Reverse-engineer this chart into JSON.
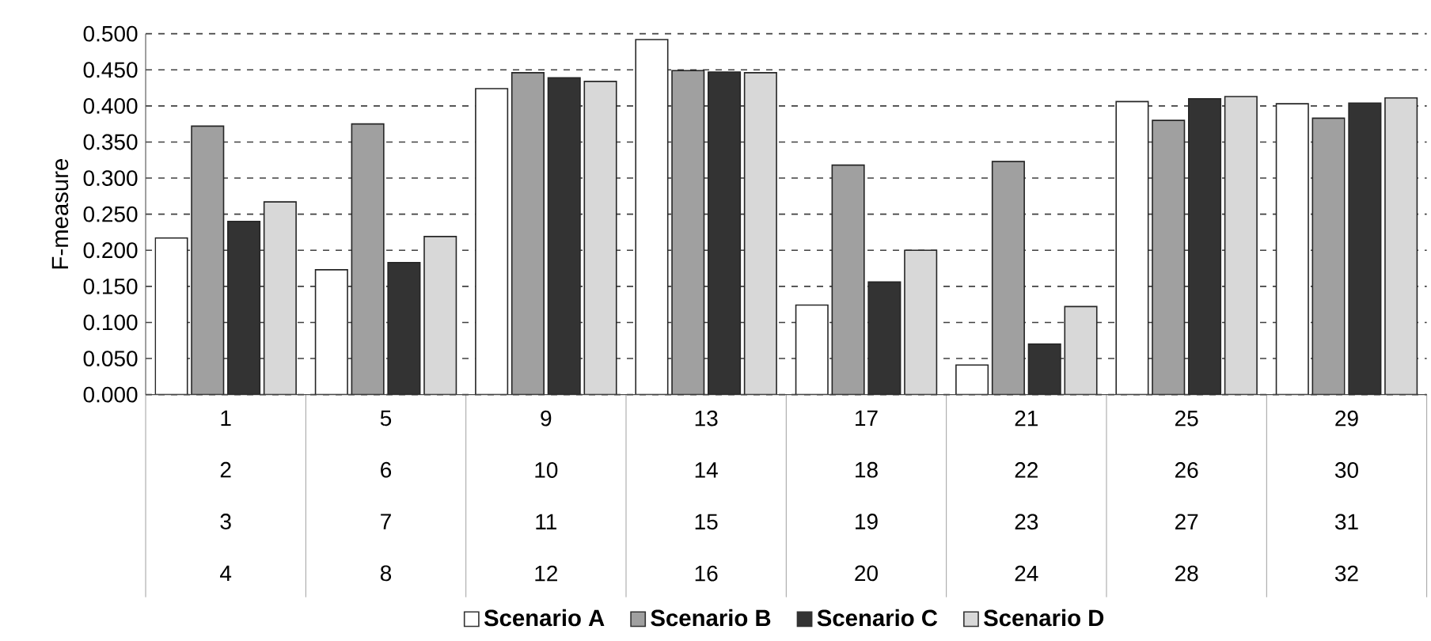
{
  "chart_data": {
    "type": "bar",
    "ylabel": "F-measure",
    "categories": [
      "1 2 3 4",
      "5 6 7 8",
      "9 10 11 12",
      "13 14 15 16",
      "17 18 19 20",
      "21 22 23 24",
      "25 26 27 28",
      "29 30 31 32"
    ],
    "series": [
      {
        "name": "Scenario A",
        "color": "#ffffff",
        "values": [
          0.217,
          0.173,
          0.424,
          0.492,
          0.124,
          0.041,
          0.406,
          0.403
        ]
      },
      {
        "name": "Scenario B",
        "color": "#a0a0a0",
        "values": [
          0.372,
          0.375,
          0.446,
          0.449,
          0.318,
          0.323,
          0.38,
          0.383
        ]
      },
      {
        "name": "Scenario C",
        "color": "#333333",
        "values": [
          0.24,
          0.183,
          0.439,
          0.447,
          0.156,
          0.07,
          0.41,
          0.404
        ]
      },
      {
        "name": "Scenario D",
        "color": "#d8d8d8",
        "values": [
          0.267,
          0.219,
          0.434,
          0.446,
          0.2,
          0.122,
          0.413,
          0.411
        ]
      }
    ],
    "ylim": [
      0,
      0.5
    ],
    "yticks": [
      {
        "value": 0,
        "label": "0.000"
      },
      {
        "value": 0.05,
        "label": "0.050"
      },
      {
        "value": 0.1,
        "label": "0.100"
      },
      {
        "value": 0.15,
        "label": "0.150"
      },
      {
        "value": 0.2,
        "label": "0.200"
      },
      {
        "value": 0.25,
        "label": "0.250"
      },
      {
        "value": 0.3,
        "label": "0.300"
      },
      {
        "value": 0.35,
        "label": "0.350"
      },
      {
        "value": 0.4,
        "label": "0.400"
      },
      {
        "value": 0.45,
        "label": "0.450"
      },
      {
        "value": 0.5,
        "label": "0.500"
      }
    ],
    "grid": "y",
    "legend": "bottom"
  }
}
